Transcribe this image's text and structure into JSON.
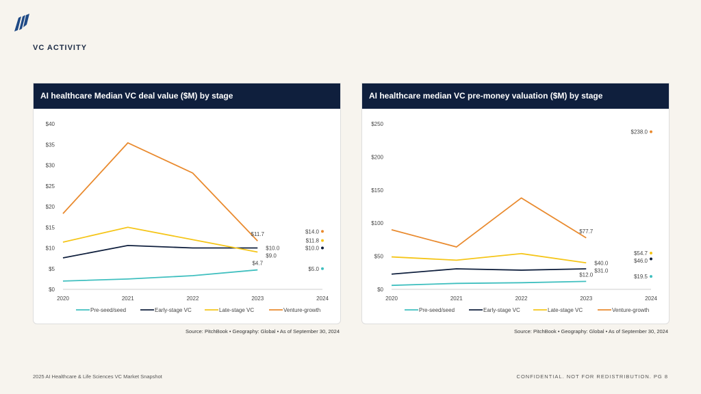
{
  "section_title": "VC ACTIVITY",
  "footer_left": "2025 AI Healthcare & Life Sciences VC Market Snapshot",
  "footer_right": "CONFIDENTIAL. NOT FOR REDISTRIBUTION. PG 8",
  "colors": {
    "Pre-seed/seed": "#3fbfbf",
    "Early-stage VC": "#0f1f3d",
    "Late-stage VC": "#f5c518",
    "Venture-growth": "#e98a2e"
  },
  "chart_data": [
    {
      "type": "line",
      "title": "AI healthcare Median VC deal value ($M) by stage",
      "source": "Source: PitchBook  •  Geography: Global  •  As of September 30, 2024",
      "x": [
        "2020",
        "2021",
        "2022",
        "2023",
        "2024"
      ],
      "ylim": [
        0,
        40
      ],
      "yticks": [
        "$0",
        "$5",
        "$10",
        "$15",
        "$20",
        "$25",
        "$30",
        "$35",
        "$40"
      ],
      "ytick_values": [
        0,
        5,
        10,
        15,
        20,
        25,
        30,
        35,
        40
      ],
      "legend": "bottom",
      "grid": false,
      "series": [
        {
          "name": "Pre-seed/seed",
          "values": [
            2.0,
            2.5,
            3.3,
            4.7,
            5.0
          ],
          "labels": {
            "3": "$4.7",
            "4": "$5.0"
          }
        },
        {
          "name": "Early-stage VC",
          "values": [
            7.6,
            10.6,
            10.0,
            10.0,
            10.0
          ],
          "labels": {
            "3": "$10.0",
            "4": "$10.0"
          }
        },
        {
          "name": "Late-stage VC",
          "values": [
            11.4,
            15.0,
            12.0,
            9.0,
            11.8
          ],
          "labels": {
            "3": "$9.0",
            "4": "$11.8"
          }
        },
        {
          "name": "Venture-growth",
          "values": [
            18.3,
            35.4,
            28.1,
            11.7,
            14.0
          ],
          "labels": {
            "3": "$11.7",
            "4": "$14.0"
          }
        }
      ]
    },
    {
      "type": "line",
      "title": "AI healthcare median VC pre-money valuation ($M) by stage",
      "source": "Source: PitchBook  •  Geography: Global  •  As of September 30, 2024",
      "x": [
        "2020",
        "2021",
        "2022",
        "2023",
        "2024"
      ],
      "ylim": [
        0,
        250
      ],
      "yticks": [
        "$0",
        "$50",
        "$100",
        "$150",
        "$200",
        "$250"
      ],
      "ytick_values": [
        0,
        50,
        100,
        150,
        200,
        250
      ],
      "legend": "bottom",
      "grid": false,
      "series": [
        {
          "name": "Pre-seed/seed",
          "values": [
            6,
            9,
            10,
            12.0,
            19.5
          ],
          "labels": {
            "3": "$12.0",
            "4": "$19.5"
          }
        },
        {
          "name": "Early-stage VC",
          "values": [
            23,
            31,
            29,
            31.0,
            46.0
          ],
          "labels": {
            "3": "$31.0",
            "4": "$46.0"
          }
        },
        {
          "name": "Late-stage VC",
          "values": [
            49,
            44,
            54,
            40.0,
            54.7
          ],
          "labels": {
            "3": "$40.0",
            "4": "$54.7"
          }
        },
        {
          "name": "Venture-growth",
          "values": [
            90,
            64,
            138,
            77.7,
            238.0
          ],
          "labels": {
            "3": "$77.7",
            "4": "$238.0"
          }
        }
      ]
    }
  ]
}
